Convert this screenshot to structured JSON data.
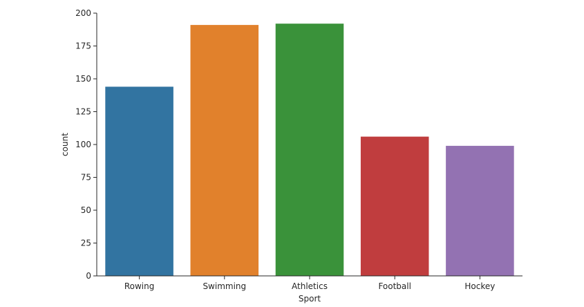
{
  "chart_data": {
    "type": "bar",
    "title": "",
    "xlabel": "Sport",
    "ylabel": "count",
    "categories": [
      "Rowing",
      "Swimming",
      "Athletics",
      "Football",
      "Hockey"
    ],
    "values": [
      144,
      191,
      192,
      106,
      99
    ],
    "colors": [
      "#3274a1",
      "#e1812c",
      "#3a923a",
      "#c03d3e",
      "#9372b2"
    ],
    "ylim": [
      0,
      200
    ],
    "yticks": [
      0,
      25,
      50,
      75,
      100,
      125,
      150,
      175,
      200
    ],
    "grid": false,
    "legend": "none"
  }
}
